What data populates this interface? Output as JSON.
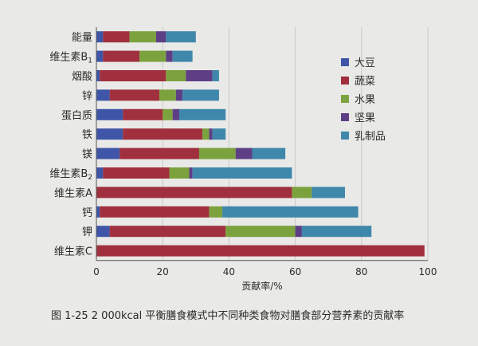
{
  "caption": "图 1-25   2 000kcal 平衡膳食模式中不同种类食物对膳食部分营养素的贡献率",
  "chart_data": {
    "type": "bar",
    "orientation": "horizontal",
    "stacked": true,
    "categories": [
      "能量",
      "维生素B1",
      "烟酸",
      "锌",
      "蛋白质",
      "铁",
      "镁",
      "维生素B2",
      "维生素A",
      "钙",
      "钾",
      "维生素C"
    ],
    "category_display": [
      {
        "text": "能量",
        "sub": ""
      },
      {
        "text": "维生素B",
        "sub": "1"
      },
      {
        "text": "烟酸",
        "sub": ""
      },
      {
        "text": "锌",
        "sub": ""
      },
      {
        "text": "蛋白质",
        "sub": ""
      },
      {
        "text": "铁",
        "sub": ""
      },
      {
        "text": "镁",
        "sub": ""
      },
      {
        "text": "维生素B",
        "sub": "2"
      },
      {
        "text": "维生素A",
        "sub": ""
      },
      {
        "text": "钙",
        "sub": ""
      },
      {
        "text": "钾",
        "sub": ""
      },
      {
        "text": "维生素C",
        "sub": ""
      }
    ],
    "series": [
      {
        "name": "大豆",
        "color": "#3f56a8",
        "values": [
          2,
          2,
          1,
          4,
          8,
          8,
          7,
          2,
          0,
          1,
          4,
          0
        ]
      },
      {
        "name": "蔬菜",
        "color": "#a0303e",
        "values": [
          8,
          11,
          20,
          15,
          12,
          24,
          24,
          20,
          59,
          33,
          35,
          99
        ]
      },
      {
        "name": "水果",
        "color": "#7ca23e",
        "values": [
          8,
          8,
          6,
          5,
          3,
          2,
          11,
          6,
          6,
          4,
          21,
          0
        ]
      },
      {
        "name": "坚果",
        "color": "#5e3f86",
        "values": [
          3,
          2,
          8,
          2,
          2,
          1,
          5,
          1,
          0,
          0,
          2,
          0
        ]
      },
      {
        "name": "乳制品",
        "color": "#3f87ab",
        "values": [
          9,
          6,
          2,
          11,
          14,
          4,
          10,
          30,
          10,
          41,
          21,
          0
        ]
      }
    ],
    "xlabel": "贡献率/%",
    "xlim": [
      0,
      100
    ],
    "xticks": [
      0,
      20,
      40,
      60,
      80,
      100
    ],
    "grid": "vertical",
    "legend_position": "right"
  }
}
